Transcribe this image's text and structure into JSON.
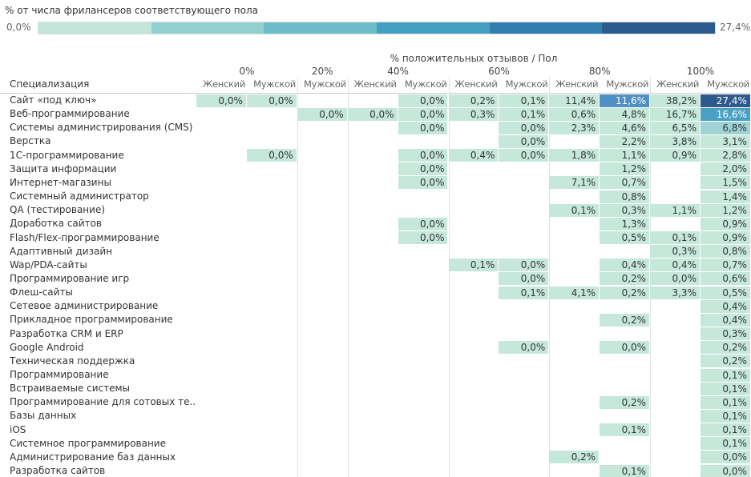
{
  "legend": {
    "title": "% от числа фрилансеров соответствующего пола",
    "min_label": "0,0%",
    "max_label": "27,4%",
    "colors": [
      "#c3e6da",
      "#92d0cf",
      "#6cbcc9",
      "#449fc0",
      "#2f7eae",
      "#2b5b8f"
    ]
  },
  "header": {
    "title": "% положительных отзывов / Пол",
    "row_header": "Специализация",
    "groups": [
      {
        "label": "0%",
        "columns": [
          "Женский",
          "Мужской"
        ]
      },
      {
        "label": "20%",
        "columns": [
          "Мужской"
        ]
      },
      {
        "label": "40%",
        "columns": [
          "Женский",
          "Мужской"
        ]
      },
      {
        "label": "60%",
        "columns": [
          "Женский",
          "Мужской"
        ]
      },
      {
        "label": "80%",
        "columns": [
          "Женский",
          "Мужской"
        ]
      },
      {
        "label": "100%",
        "columns": [
          "Женский",
          "Мужской"
        ]
      }
    ]
  },
  "cell_color": "#c6e8db",
  "highlights": [
    {
      "row": 0,
      "col": 8,
      "color": "#4f90c4",
      "text_color": "#ffffff"
    },
    {
      "row": 0,
      "col": 10,
      "color": "#2c5a8c",
      "text_color": "#ffffff"
    },
    {
      "row": 1,
      "col": 10,
      "color": "#4aa0c4",
      "text_color": "#ffffff"
    },
    {
      "row": 2,
      "col": 10,
      "color": "#9fd4d6",
      "text_color": "#333333"
    }
  ],
  "rows": [
    {
      "label": "Сайт «под ключ»",
      "cells": [
        "0,0%",
        "0,0%",
        null,
        null,
        "0,0%",
        "0,2%",
        "0,1%",
        "11,4%",
        "11,6%",
        "38,2%",
        "27,4%"
      ]
    },
    {
      "label": "Веб-программирование",
      "cells": [
        null,
        null,
        "0,0%",
        "0,0%",
        "0,0%",
        "0,3%",
        "0,1%",
        "0,6%",
        "4,8%",
        "16,7%",
        "16,6%"
      ]
    },
    {
      "label": "Системы администрирования (CMS)",
      "cells": [
        null,
        null,
        null,
        null,
        "0,0%",
        null,
        "0,0%",
        "2,3%",
        "4,6%",
        "6,5%",
        "6,8%"
      ]
    },
    {
      "label": "Верстка",
      "cells": [
        null,
        null,
        null,
        null,
        null,
        null,
        "0,0%",
        null,
        "2,2%",
        "3,8%",
        "3,1%"
      ]
    },
    {
      "label": "1С-программирование",
      "cells": [
        null,
        "0,0%",
        null,
        null,
        "0,0%",
        "0,4%",
        "0,0%",
        "1,8%",
        "1,1%",
        "0,9%",
        "2,8%"
      ]
    },
    {
      "label": "Защита информации",
      "cells": [
        null,
        null,
        null,
        null,
        "0,0%",
        null,
        null,
        null,
        "1,2%",
        null,
        "2,0%"
      ]
    },
    {
      "label": "Интернет-магазины",
      "cells": [
        null,
        null,
        null,
        null,
        "0,0%",
        null,
        null,
        "7,1%",
        "0,7%",
        null,
        "1,5%"
      ]
    },
    {
      "label": "Системный администратор",
      "cells": [
        null,
        null,
        null,
        null,
        null,
        null,
        null,
        null,
        "0,8%",
        null,
        "1,4%"
      ]
    },
    {
      "label": "QA (тестирование)",
      "cells": [
        null,
        null,
        null,
        null,
        null,
        null,
        null,
        "0,1%",
        "0,3%",
        "1,1%",
        "1,2%"
      ]
    },
    {
      "label": "Доработка сайтов",
      "cells": [
        null,
        null,
        null,
        null,
        "0,0%",
        null,
        null,
        null,
        "1,3%",
        null,
        "0,9%"
      ]
    },
    {
      "label": "Flash/Flex-программирование",
      "cells": [
        null,
        null,
        null,
        null,
        "0,0%",
        null,
        null,
        null,
        "0,5%",
        "0,1%",
        "0,9%"
      ]
    },
    {
      "label": "Адаптивный дизайн",
      "cells": [
        null,
        null,
        null,
        null,
        null,
        null,
        null,
        null,
        null,
        "0,3%",
        "0,8%"
      ]
    },
    {
      "label": "Wap/PDA-сайты",
      "cells": [
        null,
        null,
        null,
        null,
        null,
        "0,1%",
        "0,0%",
        null,
        "0,4%",
        "0,4%",
        "0,7%"
      ]
    },
    {
      "label": "Программирование игр",
      "cells": [
        null,
        null,
        null,
        null,
        null,
        null,
        "0,0%",
        null,
        "0,2%",
        "0,0%",
        "0,6%"
      ]
    },
    {
      "label": "Флеш-сайты",
      "cells": [
        null,
        null,
        null,
        null,
        null,
        null,
        "0,1%",
        "4,1%",
        "0,2%",
        "3,3%",
        "0,5%"
      ]
    },
    {
      "label": "Сетевое администрирование",
      "cells": [
        null,
        null,
        null,
        null,
        null,
        null,
        null,
        null,
        null,
        null,
        "0,4%"
      ]
    },
    {
      "label": "Прикладное программирование",
      "cells": [
        null,
        null,
        null,
        null,
        null,
        null,
        null,
        null,
        "0,2%",
        null,
        "0,4%"
      ]
    },
    {
      "label": "Разработка CRM и ERP",
      "cells": [
        null,
        null,
        null,
        null,
        null,
        null,
        null,
        null,
        null,
        null,
        "0,3%"
      ]
    },
    {
      "label": "Google Android",
      "cells": [
        null,
        null,
        null,
        null,
        null,
        null,
        "0,0%",
        null,
        "0,0%",
        null,
        "0,2%"
      ]
    },
    {
      "label": "Техническая поддержка",
      "cells": [
        null,
        null,
        null,
        null,
        null,
        null,
        null,
        null,
        null,
        null,
        "0,2%"
      ]
    },
    {
      "label": "Программирование",
      "cells": [
        null,
        null,
        null,
        null,
        null,
        null,
        null,
        null,
        null,
        null,
        "0,1%"
      ]
    },
    {
      "label": "Встраиваемые системы",
      "cells": [
        null,
        null,
        null,
        null,
        null,
        null,
        null,
        null,
        null,
        null,
        "0,1%"
      ]
    },
    {
      "label": "Программирование для сотовых те..",
      "cells": [
        null,
        null,
        null,
        null,
        null,
        null,
        null,
        null,
        "0,2%",
        null,
        "0,1%"
      ]
    },
    {
      "label": "Базы данных",
      "cells": [
        null,
        null,
        null,
        null,
        null,
        null,
        null,
        null,
        null,
        null,
        "0,1%"
      ]
    },
    {
      "label": "iOS",
      "cells": [
        null,
        null,
        null,
        null,
        null,
        null,
        null,
        null,
        "0,1%",
        null,
        "0,1%"
      ]
    },
    {
      "label": "Системное программирование",
      "cells": [
        null,
        null,
        null,
        null,
        null,
        null,
        null,
        null,
        null,
        null,
        "0,1%"
      ]
    },
    {
      "label": "Администрирование баз данных",
      "cells": [
        null,
        null,
        null,
        null,
        null,
        null,
        null,
        "0,2%",
        null,
        null,
        "0,0%"
      ]
    },
    {
      "label": "Разработка сайтов",
      "cells": [
        null,
        null,
        null,
        null,
        null,
        null,
        null,
        null,
        "0,1%",
        null,
        "0,0%"
      ]
    }
  ]
}
